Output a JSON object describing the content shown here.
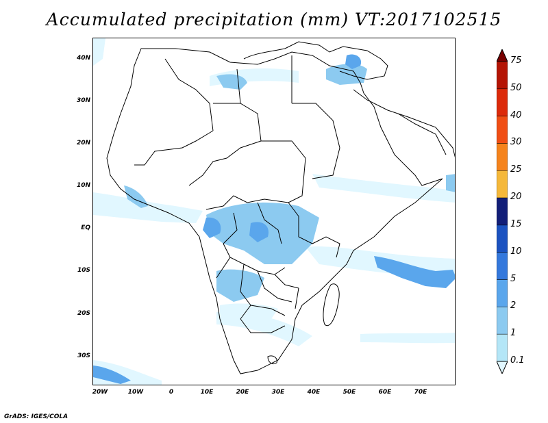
{
  "title": "Accumulated precipitation (mm) VT:2017102515",
  "credit": "GrADS: IGES/COLA",
  "axes": {
    "lat_labels": [
      "40N",
      "30N",
      "20N",
      "10N",
      "EQ",
      "10S",
      "20S",
      "30S"
    ],
    "lon_labels": [
      "20W",
      "10W",
      "0",
      "10E",
      "20E",
      "30E",
      "40E",
      "50E",
      "60E",
      "70E"
    ]
  },
  "legend": {
    "labels": [
      "0.1",
      "1",
      "2",
      "5",
      "10",
      "15",
      "20",
      "25",
      "30",
      "40",
      "50",
      "75"
    ],
    "colors": [
      "#e1f7ff",
      "#b4e6f7",
      "#8ccaf0",
      "#5aa6ec",
      "#3478dc",
      "#1b52c0",
      "#121e78",
      "#f5b83a",
      "#f5831c",
      "#f04e14",
      "#dc2a0a",
      "#b41405",
      "#780000"
    ]
  },
  "palette": {
    "land_outline": "#000000",
    "rain_light": "#e1f7ff",
    "rain_low": "#b4e6f7",
    "rain_mid": "#8ccaf0",
    "rain_high": "#5aa6ec",
    "rain_heavy": "#3478dc"
  }
}
